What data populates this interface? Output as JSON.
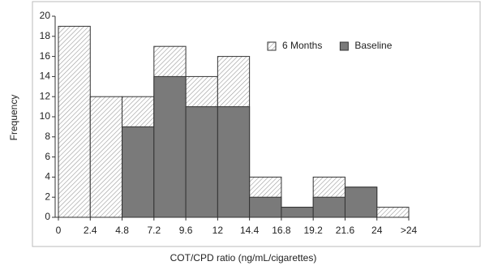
{
  "chart_data": {
    "type": "histogram",
    "xlabel": "COT/CPD ratio (ng/mL/cigarettes)",
    "ylabel": "Frequency",
    "bins": [
      0,
      2.4,
      4.8,
      7.2,
      9.6,
      12,
      14.4,
      16.8,
      19.2,
      21.6,
      24,
      26.4
    ],
    "series": [
      {
        "name": "6 Months",
        "color": "#9a9a9a",
        "pattern": "hatch",
        "values": [
          19,
          12,
          12,
          17,
          14,
          16,
          4,
          1,
          4,
          3,
          1
        ]
      },
      {
        "name": "Baseline",
        "color": "#7a7a7a",
        "pattern": "solid",
        "values": [
          0,
          0,
          9,
          14,
          11,
          11,
          2,
          1,
          2,
          3,
          0
        ]
      }
    ],
    "xlim": [
      0,
      26.4
    ],
    "xticks": [
      0,
      2.4,
      4.8,
      7.2,
      9.6,
      12,
      14.4,
      16.8,
      19.2,
      21.6,
      24,
      {
        "value": 26.4,
        "label": ">24"
      }
    ],
    "ylim": [
      0,
      20
    ],
    "yticks": [
      0,
      2,
      4,
      6,
      8,
      10,
      12,
      14,
      16,
      18,
      20
    ],
    "grid": false,
    "legend": "upper-right"
  }
}
